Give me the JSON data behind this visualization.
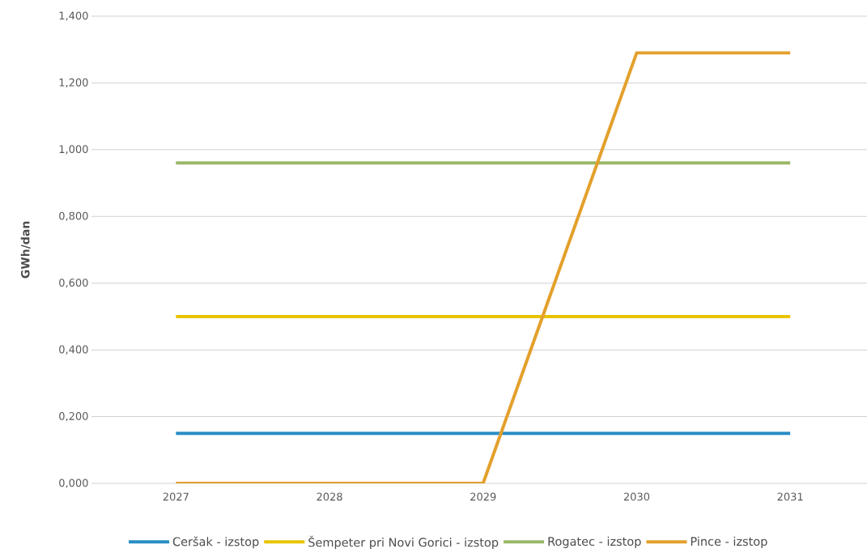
{
  "chart_data": {
    "type": "line",
    "ylabel": "GWh/dan",
    "categories": [
      "2027",
      "2028",
      "2029",
      "2030",
      "2031"
    ],
    "series": [
      {
        "name": "Ceršak - izstop",
        "color": "#2a8dc5",
        "values": [
          0.15,
          0.15,
          0.15,
          0.15,
          0.15
        ]
      },
      {
        "name": "Šempeter pri Novi Gorici - izstop",
        "color": "#e8c400",
        "values": [
          0.5,
          0.5,
          0.5,
          0.5,
          0.5
        ]
      },
      {
        "name": "Rogatec - izstop",
        "color": "#9bb86a",
        "values": [
          0.96,
          0.96,
          0.96,
          0.96,
          0.96
        ]
      },
      {
        "name": "Pince - izstop",
        "color": "#e3a02c",
        "values": [
          0,
          0,
          0,
          1.29,
          1.29
        ]
      }
    ],
    "ylim": [
      0,
      1.4
    ],
    "yticks": [
      {
        "value": 0,
        "label": "0,000"
      },
      {
        "value": 0.2,
        "label": "0,200"
      },
      {
        "value": 0.4,
        "label": "0,400"
      },
      {
        "value": 0.6,
        "label": "0,600"
      },
      {
        "value": 0.8,
        "label": "0,800"
      },
      {
        "value": 1.0,
        "label": "1,000"
      },
      {
        "value": 1.2,
        "label": "1,200"
      },
      {
        "value": 1.4,
        "label": "1,400"
      }
    ],
    "grid": "y",
    "legend": "bottom",
    "marker": "none",
    "line_style": "solid"
  }
}
